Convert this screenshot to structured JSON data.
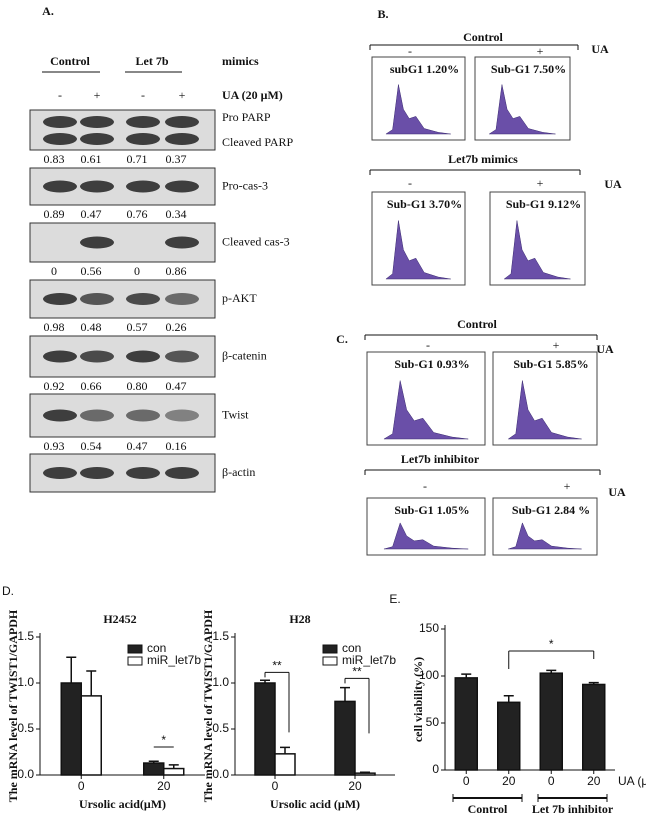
{
  "panel_a": {
    "label": "A.",
    "groups": [
      "Control",
      "Let 7b"
    ],
    "group_suffix": "mimics",
    "lanes": [
      "-",
      "+",
      "-",
      "+"
    ],
    "treatment": "UA (20 μM)",
    "blots": [
      {
        "labels": [
          "Pro PARP",
          "Cleaved PARP"
        ],
        "quant": [
          "0.83",
          "0.61",
          "0.71",
          "0.37"
        ]
      },
      {
        "labels": [
          "Pro-cas-3"
        ],
        "quant": [
          "0.89",
          "0.47",
          "0.76",
          "0.34"
        ]
      },
      {
        "labels": [
          "Cleaved cas-3"
        ],
        "quant": [
          "0",
          "0.56",
          "0",
          "0.86"
        ]
      },
      {
        "labels": [
          "p-AKT"
        ],
        "quant": [
          "0.98",
          "0.48",
          "0.57",
          "0.26"
        ]
      },
      {
        "labels": [
          "β-catenin"
        ],
        "quant": [
          "0.92",
          "0.66",
          "0.80",
          "0.47"
        ]
      },
      {
        "labels": [
          "Twist"
        ],
        "quant": [
          "0.93",
          "0.54",
          "0.47",
          "0.16"
        ]
      },
      {
        "labels": [
          "β-actin"
        ]
      }
    ]
  },
  "panel_b": {
    "label": "B.",
    "rows": [
      {
        "title": "Control",
        "signs": [
          "-",
          "+"
        ],
        "ua": "UA",
        "boxes": [
          "subG1 1.20%",
          "Sub-G1 7.50%"
        ]
      },
      {
        "title": "Let7b  mimics",
        "signs": [
          "-",
          "+"
        ],
        "ua": "UA",
        "boxes": [
          "Sub-G1 3.70%",
          "Sub-G1 9.12%"
        ]
      }
    ]
  },
  "panel_c": {
    "label": "C.",
    "rows": [
      {
        "title": "Control",
        "signs": [
          "-",
          "+"
        ],
        "ua": "UA",
        "boxes": [
          "Sub-G1 0.93%",
          "Sub-G1 5.85%"
        ]
      },
      {
        "title": "Let7b inhibitor",
        "signs": [
          "-",
          "+"
        ],
        "ua": "UA",
        "boxes": [
          "Sub-G1 1.05%",
          "Sub-G1 2.84 %"
        ]
      }
    ]
  },
  "chart_data": [
    {
      "type": "bar",
      "label": "D.",
      "title": "H2452",
      "categories": [
        "0",
        "20"
      ],
      "series": [
        {
          "name": "con",
          "color": "#222222",
          "values": [
            1.0,
            0.13
          ],
          "errors": [
            0.28,
            0.02
          ]
        },
        {
          "name": "miR_let7b",
          "color": "#ffffff",
          "values": [
            0.86,
            0.07
          ],
          "errors": [
            0.27,
            0.04
          ]
        }
      ],
      "ylim": [
        0,
        1.5
      ],
      "yticks": [
        {
          "value": 0,
          "label": "0.0"
        },
        {
          "value": 0.5,
          "label": "0.5"
        },
        {
          "value": 1,
          "label": "1.0"
        },
        {
          "value": 1.5,
          "label": "1.5"
        }
      ],
      "x_label": "Ursolic acid(μM)",
      "y_label": "The mRNA level of TWIST1/GAPDH",
      "annotations": [
        {
          "text": "*"
        }
      ]
    },
    {
      "type": "bar",
      "title": "H28",
      "categories": [
        "0",
        "20"
      ],
      "series": [
        {
          "name": "con",
          "color": "#222222",
          "values": [
            1.0,
            0.8
          ],
          "errors": [
            0.03,
            0.15
          ]
        },
        {
          "name": "miR_let7b",
          "color": "#ffffff",
          "values": [
            0.23,
            0.02
          ],
          "errors": [
            0.07,
            0.01
          ]
        }
      ],
      "ylim": [
        0,
        1.5
      ],
      "yticks": [
        {
          "value": 0,
          "label": "0.0"
        },
        {
          "value": 0.5,
          "label": "0.5"
        },
        {
          "value": 1,
          "label": "1.0"
        },
        {
          "value": 1.5,
          "label": "1.5"
        }
      ],
      "x_label": "Ursolic acid (μM)",
      "y_label": "The mRNA level of TWIST1/GAPDH",
      "annotations": [
        {
          "text": "**"
        },
        {
          "text": "**"
        }
      ]
    },
    {
      "type": "bar",
      "label": "E.",
      "categories": [
        "0",
        "20",
        "0",
        "20"
      ],
      "values": [
        98,
        72,
        103,
        91
      ],
      "errors": [
        4,
        7,
        3,
        2
      ],
      "color": "#222222",
      "ylim": [
        0,
        150
      ],
      "yticks": [
        0,
        50,
        100,
        150
      ],
      "y_label": "cell viability (%)",
      "x_unit": "UA (μM)",
      "group_labels": [
        "Control",
        "Let 7b inhibitor"
      ],
      "annotations": [
        {
          "text": "*"
        }
      ]
    }
  ]
}
